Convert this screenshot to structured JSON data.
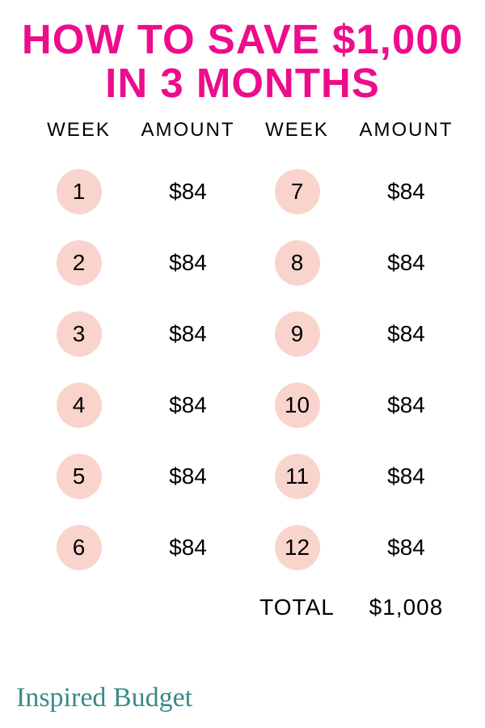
{
  "title": {
    "line1": "HOW TO SAVE $1,000",
    "line2": "IN 3 MONTHS",
    "color": "#ed0c8c",
    "fontsize": 51
  },
  "headers": {
    "week": "WEEK",
    "amount": "AMOUNT"
  },
  "bubble_color": "#f9d4cd",
  "left": [
    {
      "week": "1",
      "amount": "$84"
    },
    {
      "week": "2",
      "amount": "$84"
    },
    {
      "week": "3",
      "amount": "$84"
    },
    {
      "week": "4",
      "amount": "$84"
    },
    {
      "week": "5",
      "amount": "$84"
    },
    {
      "week": "6",
      "amount": "$84"
    }
  ],
  "right": [
    {
      "week": "7",
      "amount": "$84"
    },
    {
      "week": "8",
      "amount": "$84"
    },
    {
      "week": "9",
      "amount": "$84"
    },
    {
      "week": "10",
      "amount": "$84"
    },
    {
      "week": "11",
      "amount": "$84"
    },
    {
      "week": "12",
      "amount": "$84"
    }
  ],
  "total": {
    "label": "TOTAL",
    "value": "$1,008"
  },
  "brand": {
    "text": "Inspired Budget",
    "color": "#3a8a8a"
  }
}
